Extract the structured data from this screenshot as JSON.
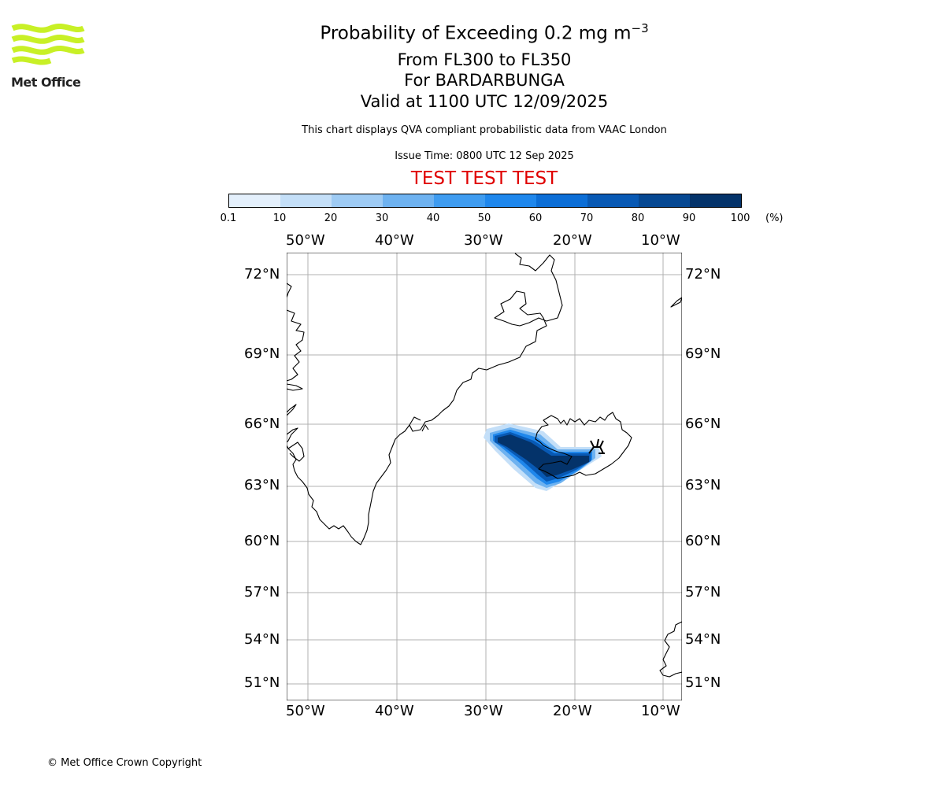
{
  "logo": {
    "text": "Met Office",
    "color": "#c8f026"
  },
  "header": {
    "title_prefix": "Probability of Exceeding 0.2 mg m",
    "title_superscript": "−3",
    "line_levels": "From FL300 to FL350",
    "line_volcano": "For BARDARBUNGA",
    "line_valid": "Valid at 1100 UTC 12/09/2025",
    "description": "This chart displays QVA compliant probabilistic data from VAAC London",
    "issue_time": "Issue Time: 0800 UTC 12 Sep 2025",
    "test_banner": "TEST TEST TEST",
    "test_color": "#e00000"
  },
  "colorbar": {
    "ticks": [
      "0.1",
      "10",
      "20",
      "30",
      "40",
      "50",
      "60",
      "70",
      "80",
      "90",
      "100"
    ],
    "unit": "(%)",
    "colors": [
      "#e4f0fc",
      "#c4dff8",
      "#9ecbf4",
      "#6eb2f0",
      "#3f9cf0",
      "#1f87ec",
      "#0c6ed6",
      "#0859b4",
      "#064892",
      "#04336a"
    ]
  },
  "map": {
    "lon_labels": [
      "50°W",
      "40°W",
      "30°W",
      "20°W",
      "10°W"
    ],
    "lat_labels": [
      "72°N",
      "69°N",
      "66°N",
      "63°N",
      "60°N",
      "57°N",
      "54°N",
      "51°N"
    ],
    "volcano": "BARDARBUNGA",
    "plume_probability_levels": [
      10,
      30,
      50,
      70,
      90
    ]
  },
  "footer": {
    "copyright": "© Met Office Crown Copyright"
  }
}
